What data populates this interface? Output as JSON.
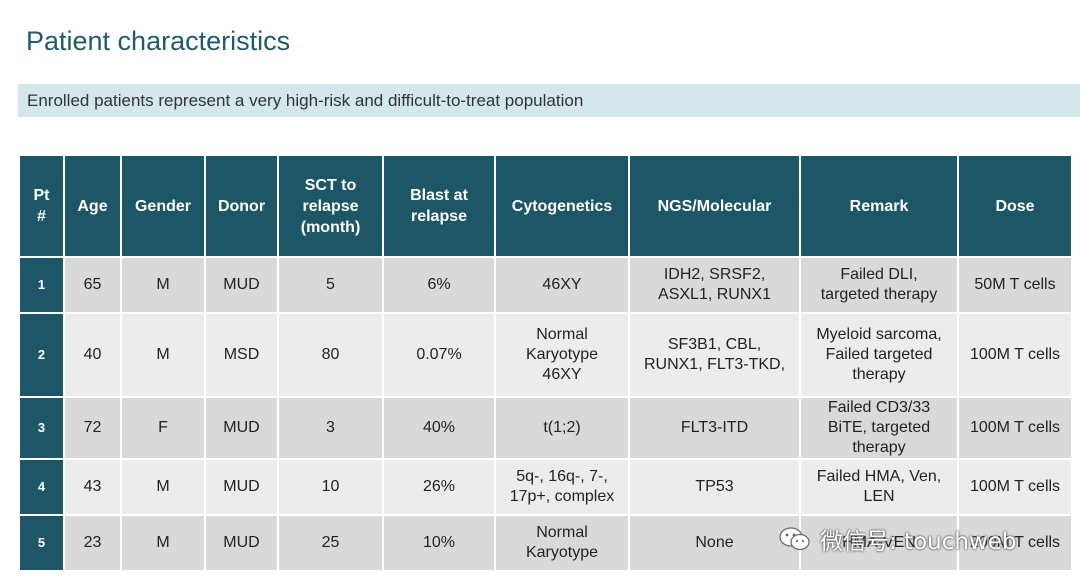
{
  "title": "Patient characteristics",
  "banner": "Enrolled patients represent a very high-risk and difficult-to-treat population",
  "table": {
    "headers": [
      "Pt\n#",
      "Age",
      "Gender",
      "Donor",
      "SCT to\nrelapse\n(month)",
      "Blast at\nrelapse",
      "Cytogenetics",
      "NGS/Molecular",
      "Remark",
      "Dose"
    ],
    "rows": [
      [
        "1",
        "65",
        "M",
        "MUD",
        "5",
        "6%",
        "46XY",
        "IDH2, SRSF2,\nASXL1, RUNX1",
        "Failed DLI,\ntargeted therapy",
        "50M T cells"
      ],
      [
        "2",
        "40",
        "M",
        "MSD",
        "80",
        "0.07%",
        "Normal\nKaryotype\n46XY",
        "SF3B1, CBL,\nRUNX1, FLT3-TKD,",
        "Myeloid sarcoma,\nFailed targeted\ntherapy",
        "100M T cells"
      ],
      [
        "3",
        "72",
        "F",
        "MUD",
        "3",
        "40%",
        "t(1;2)",
        "FLT3-ITD",
        "Failed CD3/33\nBiTE, targeted\ntherapy",
        "100M T cells"
      ],
      [
        "4",
        "43",
        "M",
        "MUD",
        "10",
        "26%",
        "5q-, 16q-, 7-,\n17p+, complex",
        "TP53",
        "Failed HMA, Ven,\nLEN",
        "100M T cells"
      ],
      [
        "5",
        "23",
        "M",
        "MUD",
        "25",
        "10%",
        "Normal\nKaryotype",
        "None",
        "HMA-VEN",
        "200M T cells"
      ]
    ]
  },
  "watermark": {
    "icon": "wechat-icon",
    "text": "微信号: touchweb"
  },
  "colors": {
    "header_bg": "#1d5767",
    "title": "#1f5b6b",
    "banner_bg": "#d3e7ec",
    "row_odd": "#d9d9d9",
    "row_even": "#ececec"
  }
}
